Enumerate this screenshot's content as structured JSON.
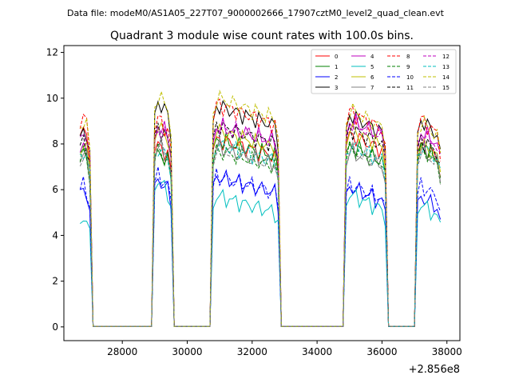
{
  "figure": {
    "suptitle": "Data file: modeM0/AS1A05_227T07_9000002666_17907cztM0_level2_quad_clean.evt",
    "offset_label": "+2.856e8"
  },
  "chart_data": {
    "type": "line",
    "title": "Quadrant 3 module wise count rates with 100.0s bins.",
    "xlabel": "",
    "ylabel": "",
    "xlim": [
      26200,
      38400
    ],
    "ylim": [
      -0.6,
      12.3
    ],
    "x_offset": 285600000,
    "xticks": [
      28000,
      30000,
      32000,
      34000,
      36000,
      38000
    ],
    "xtick_labels": [
      "28000",
      "30000",
      "32000",
      "34000",
      "36000",
      "38000"
    ],
    "yticks": [
      0,
      2,
      4,
      6,
      8,
      10,
      12
    ],
    "ytick_labels": [
      "0",
      "2",
      "4",
      "6",
      "8",
      "10",
      "12"
    ],
    "grid": false,
    "legend_position": "top-right",
    "segments": [
      [
        26700,
        27000
      ],
      [
        29000,
        29500
      ],
      [
        30800,
        32800
      ],
      [
        34900,
        36100
      ],
      [
        37100,
        37800
      ]
    ],
    "gap_rate": 0.02,
    "series": [
      {
        "name": "0",
        "color": "#ff0000",
        "dash": "solid",
        "base": 8.5,
        "phase": 0.0,
        "drop": 0.1,
        "segment_levels": [
          1.05,
          0.96,
          0.97,
          1.0,
          0.95
        ]
      },
      {
        "name": "1",
        "color": "#008000",
        "dash": "solid",
        "base": 8.0,
        "phase": 0.7,
        "drop": 0.1,
        "segment_levels": [
          1.0,
          0.98,
          1.03,
          1.0,
          1.0
        ]
      },
      {
        "name": "2",
        "color": "#0000ff",
        "dash": "solid",
        "base": 6.3,
        "phase": 1.4,
        "drop": 0.12,
        "segment_levels": [
          1.0,
          1.05,
          1.05,
          0.98,
          0.92
        ]
      },
      {
        "name": "3",
        "color": "#000000",
        "dash": "solid",
        "base": 9.0,
        "phase": 2.1,
        "drop": 0.1,
        "segment_levels": [
          1.0,
          1.12,
          1.08,
          1.04,
          1.02
        ]
      },
      {
        "name": "4",
        "color": "#bf00bf",
        "dash": "solid",
        "base": 8.8,
        "phase": 2.8,
        "drop": 0.08,
        "segment_levels": [
          0.95,
          1.02,
          1.0,
          1.03,
          0.98
        ]
      },
      {
        "name": "5",
        "color": "#00bfbf",
        "dash": "solid",
        "base": 5.6,
        "phase": 3.5,
        "drop": 0.14,
        "segment_levels": [
          0.9,
          1.18,
          1.03,
          1.05,
          0.98
        ]
      },
      {
        "name": "6",
        "color": "#bfbf00",
        "dash": "solid",
        "base": 8.3,
        "phase": 4.2,
        "drop": 0.1,
        "segment_levels": [
          1.0,
          1.08,
          1.04,
          1.05,
          0.98
        ]
      },
      {
        "name": "7",
        "color": "#808080",
        "dash": "solid",
        "base": 7.9,
        "phase": 4.9,
        "drop": 0.1,
        "segment_levels": [
          1.0,
          1.02,
          1.0,
          0.98,
          1.0
        ]
      },
      {
        "name": "8",
        "color": "#ff0000",
        "dash": "dashed",
        "base": 9.5,
        "phase": 5.6,
        "drop": 0.1,
        "segment_levels": [
          1.0,
          0.98,
          1.03,
          1.0,
          0.97
        ]
      },
      {
        "name": "9",
        "color": "#008000",
        "dash": "dashed",
        "base": 7.9,
        "phase": 6.3,
        "drop": 0.1,
        "segment_levels": [
          1.0,
          1.0,
          0.98,
          1.0,
          1.0
        ]
      },
      {
        "name": "10",
        "color": "#0000ff",
        "dash": "dashed",
        "base": 6.5,
        "phase": 7.0,
        "drop": 0.12,
        "segment_levels": [
          1.0,
          1.05,
          1.02,
          0.97,
          0.97
        ]
      },
      {
        "name": "11",
        "color": "#000000",
        "dash": "dashed",
        "base": 8.5,
        "phase": 7.7,
        "drop": 0.1,
        "segment_levels": [
          1.0,
          1.05,
          1.04,
          1.03,
          0.98
        ]
      },
      {
        "name": "12",
        "color": "#bf00bf",
        "dash": "dashed",
        "base": 8.8,
        "phase": 8.4,
        "drop": 0.08,
        "segment_levels": [
          1.0,
          1.0,
          1.0,
          1.02,
          0.97
        ]
      },
      {
        "name": "13",
        "color": "#00bfbf",
        "dash": "dashed",
        "base": 8.0,
        "phase": 9.1,
        "drop": 0.1,
        "segment_levels": [
          1.0,
          1.0,
          1.0,
          1.0,
          1.0
        ]
      },
      {
        "name": "14",
        "color": "#bfbf00",
        "dash": "dashed",
        "base": 9.6,
        "phase": 9.8,
        "drop": 0.1,
        "segment_levels": [
          0.98,
          1.08,
          1.05,
          1.0,
          0.95
        ]
      },
      {
        "name": "15",
        "color": "#808080",
        "dash": "dashed",
        "base": 7.8,
        "phase": 10.5,
        "drop": 0.1,
        "segment_levels": [
          1.0,
          1.05,
          1.0,
          1.0,
          1.0
        ]
      }
    ]
  }
}
